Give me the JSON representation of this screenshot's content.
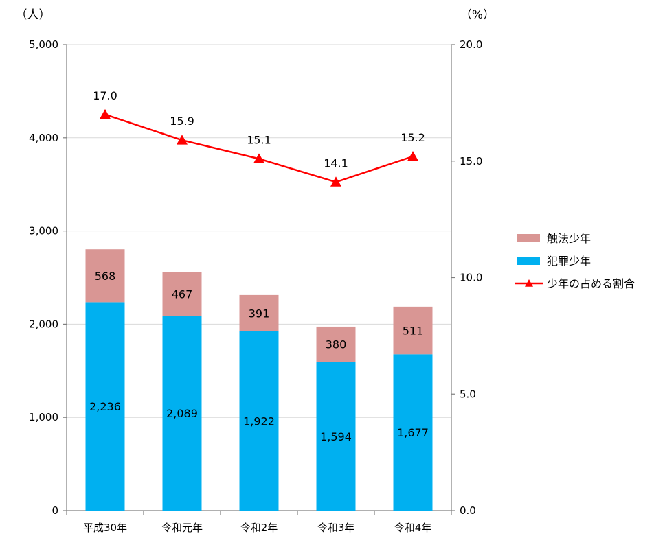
{
  "chart_data": {
    "type": "bar",
    "stacked": true,
    "categories": [
      "平成30年",
      "令和元年",
      "令和2年",
      "令和3年",
      "令和4年"
    ],
    "series": [
      {
        "name": "犯罪少年",
        "type": "bar",
        "axis": "left",
        "color": "#00b0f0",
        "values": [
          2236,
          2089,
          1922,
          1594,
          1677
        ],
        "labels": [
          "2,236",
          "2,089",
          "1,922",
          "1,594",
          "1,677"
        ]
      },
      {
        "name": "触法少年",
        "type": "bar",
        "axis": "left",
        "color": "#d99694",
        "values": [
          568,
          467,
          391,
          380,
          511
        ],
        "labels": [
          "568",
          "467",
          "391",
          "380",
          "511"
        ]
      },
      {
        "name": "少年の占める割合",
        "type": "line",
        "axis": "right",
        "color": "#ff0000",
        "marker": "triangle",
        "values": [
          17.0,
          15.9,
          15.1,
          14.1,
          15.2
        ],
        "labels": [
          "17.0",
          "15.9",
          "15.1",
          "14.1",
          "15.2"
        ]
      }
    ],
    "y_left": {
      "unit": "（人）",
      "min": 0,
      "max": 5000,
      "ticks": [
        0,
        1000,
        2000,
        3000,
        4000,
        5000
      ],
      "tick_labels": [
        "0",
        "1,000",
        "2,000",
        "3,000",
        "4,000",
        "5,000"
      ]
    },
    "y_right": {
      "unit": "（%）",
      "min": 0,
      "max": 20,
      "ticks": [
        0,
        5,
        10,
        15,
        20
      ],
      "tick_labels": [
        "0.0",
        "5.0",
        "10.0",
        "15.0",
        "20.0"
      ]
    },
    "grid": true,
    "legend": {
      "position": "right",
      "order": [
        "触法少年",
        "犯罪少年",
        "少年の占める割合"
      ]
    }
  }
}
